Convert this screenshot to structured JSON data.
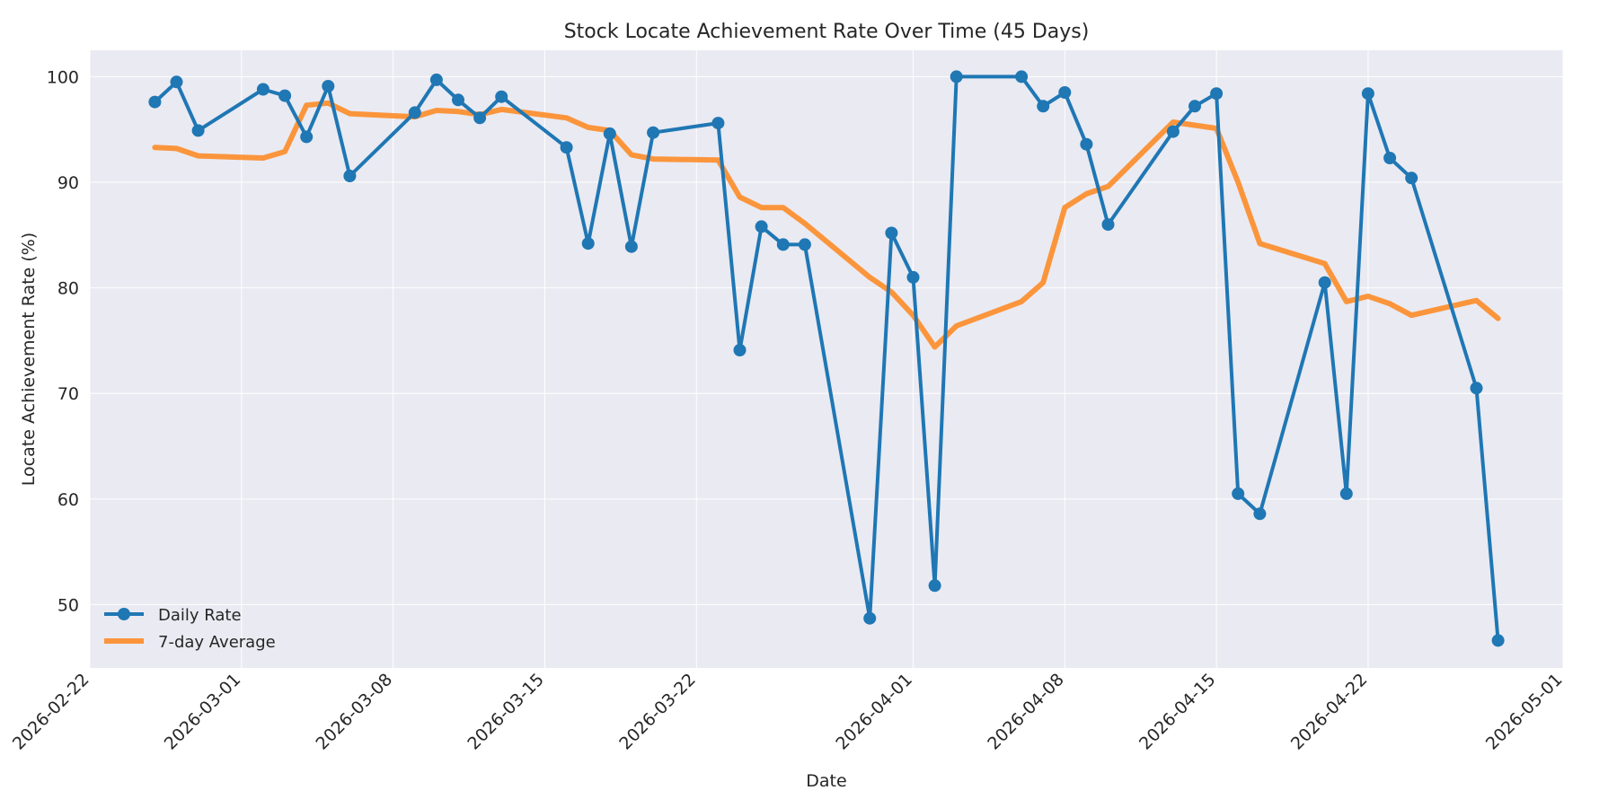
{
  "chart_data": {
    "type": "line",
    "title": "Stock Locate Achievement Rate Over Time (45 Days)",
    "xlabel": "Date",
    "ylabel": "Locate Achievement Rate (%)",
    "xlim": [
      "2026-02-22",
      "2026-05-01"
    ],
    "ylim": [
      44,
      102.5
    ],
    "xticks": [
      "2026-02-22",
      "2026-03-01",
      "2026-03-08",
      "2026-03-15",
      "2026-03-22",
      "2026-04-01",
      "2026-04-08",
      "2026-04-15",
      "2026-04-22",
      "2026-05-01"
    ],
    "yticks": [
      50,
      60,
      70,
      80,
      90,
      100
    ],
    "grid": true,
    "legend_position": "lower-left",
    "series": [
      {
        "name": "Daily Rate",
        "color": "#1f77b4",
        "marker": "circle",
        "points": [
          [
            "2026-02-25",
            97.6
          ],
          [
            "2026-02-26",
            99.5
          ],
          [
            "2026-02-27",
            94.9
          ],
          [
            "2026-03-02",
            98.8
          ],
          [
            "2026-03-03",
            98.2
          ],
          [
            "2026-03-04",
            94.3
          ],
          [
            "2026-03-05",
            99.1
          ],
          [
            "2026-03-06",
            90.6
          ],
          [
            "2026-03-09",
            96.6
          ],
          [
            "2026-03-10",
            99.7
          ],
          [
            "2026-03-11",
            97.8
          ],
          [
            "2026-03-12",
            96.1
          ],
          [
            "2026-03-13",
            98.1
          ],
          [
            "2026-03-16",
            93.3
          ],
          [
            "2026-03-17",
            84.2
          ],
          [
            "2026-03-18",
            94.6
          ],
          [
            "2026-03-19",
            83.9
          ],
          [
            "2026-03-20",
            94.7
          ],
          [
            "2026-03-23",
            95.6
          ],
          [
            "2026-03-24",
            74.1
          ],
          [
            "2026-03-25",
            85.8
          ],
          [
            "2026-03-26",
            84.1
          ],
          [
            "2026-03-27",
            84.1
          ],
          [
            "2026-03-30",
            48.7
          ],
          [
            "2026-03-31",
            85.2
          ],
          [
            "2026-04-01",
            81.0
          ],
          [
            "2026-04-02",
            51.8
          ],
          [
            "2026-04-03",
            100.0
          ],
          [
            "2026-04-06",
            100.0
          ],
          [
            "2026-04-07",
            97.2
          ],
          [
            "2026-04-08",
            98.5
          ],
          [
            "2026-04-09",
            93.6
          ],
          [
            "2026-04-10",
            86.0
          ],
          [
            "2026-04-13",
            94.8
          ],
          [
            "2026-04-14",
            97.2
          ],
          [
            "2026-04-15",
            98.4
          ],
          [
            "2026-04-16",
            60.5
          ],
          [
            "2026-04-17",
            58.6
          ],
          [
            "2026-04-20",
            80.5
          ],
          [
            "2026-04-21",
            60.5
          ],
          [
            "2026-04-22",
            98.4
          ],
          [
            "2026-04-23",
            92.3
          ],
          [
            "2026-04-24",
            90.4
          ],
          [
            "2026-04-27",
            70.5
          ],
          [
            "2026-04-28",
            46.6
          ]
        ]
      },
      {
        "name": "7-day Average",
        "color": "#ff7f0e",
        "marker": "none",
        "points": [
          [
            "2026-02-25",
            93.3
          ],
          [
            "2026-02-26",
            93.2
          ],
          [
            "2026-02-27",
            92.5
          ],
          [
            "2026-03-02",
            92.3
          ],
          [
            "2026-03-03",
            92.9
          ],
          [
            "2026-03-04",
            97.3
          ],
          [
            "2026-03-05",
            97.5
          ],
          [
            "2026-03-06",
            96.5
          ],
          [
            "2026-03-09",
            96.2
          ],
          [
            "2026-03-10",
            96.8
          ],
          [
            "2026-03-11",
            96.7
          ],
          [
            "2026-03-12",
            96.4
          ],
          [
            "2026-03-13",
            96.9
          ],
          [
            "2026-03-16",
            96.1
          ],
          [
            "2026-03-17",
            95.2
          ],
          [
            "2026-03-18",
            94.9
          ],
          [
            "2026-03-19",
            92.6
          ],
          [
            "2026-03-20",
            92.2
          ],
          [
            "2026-03-23",
            92.1
          ],
          [
            "2026-03-24",
            88.6
          ],
          [
            "2026-03-25",
            87.6
          ],
          [
            "2026-03-26",
            87.6
          ],
          [
            "2026-03-27",
            86.1
          ],
          [
            "2026-03-30",
            81.0
          ],
          [
            "2026-03-31",
            79.6
          ],
          [
            "2026-04-01",
            77.4
          ],
          [
            "2026-04-02",
            74.4
          ],
          [
            "2026-04-03",
            76.4
          ],
          [
            "2026-04-06",
            78.7
          ],
          [
            "2026-04-07",
            80.5
          ],
          [
            "2026-04-08",
            87.6
          ],
          [
            "2026-04-09",
            88.9
          ],
          [
            "2026-04-10",
            89.6
          ],
          [
            "2026-04-13",
            95.7
          ],
          [
            "2026-04-14",
            95.4
          ],
          [
            "2026-04-15",
            95.1
          ],
          [
            "2026-04-16",
            90.0
          ],
          [
            "2026-04-17",
            84.2
          ],
          [
            "2026-04-20",
            82.3
          ],
          [
            "2026-04-21",
            78.7
          ],
          [
            "2026-04-22",
            79.2
          ],
          [
            "2026-04-23",
            78.5
          ],
          [
            "2026-04-24",
            77.4
          ],
          [
            "2026-04-27",
            78.8
          ],
          [
            "2026-04-28",
            77.1
          ]
        ]
      }
    ]
  }
}
